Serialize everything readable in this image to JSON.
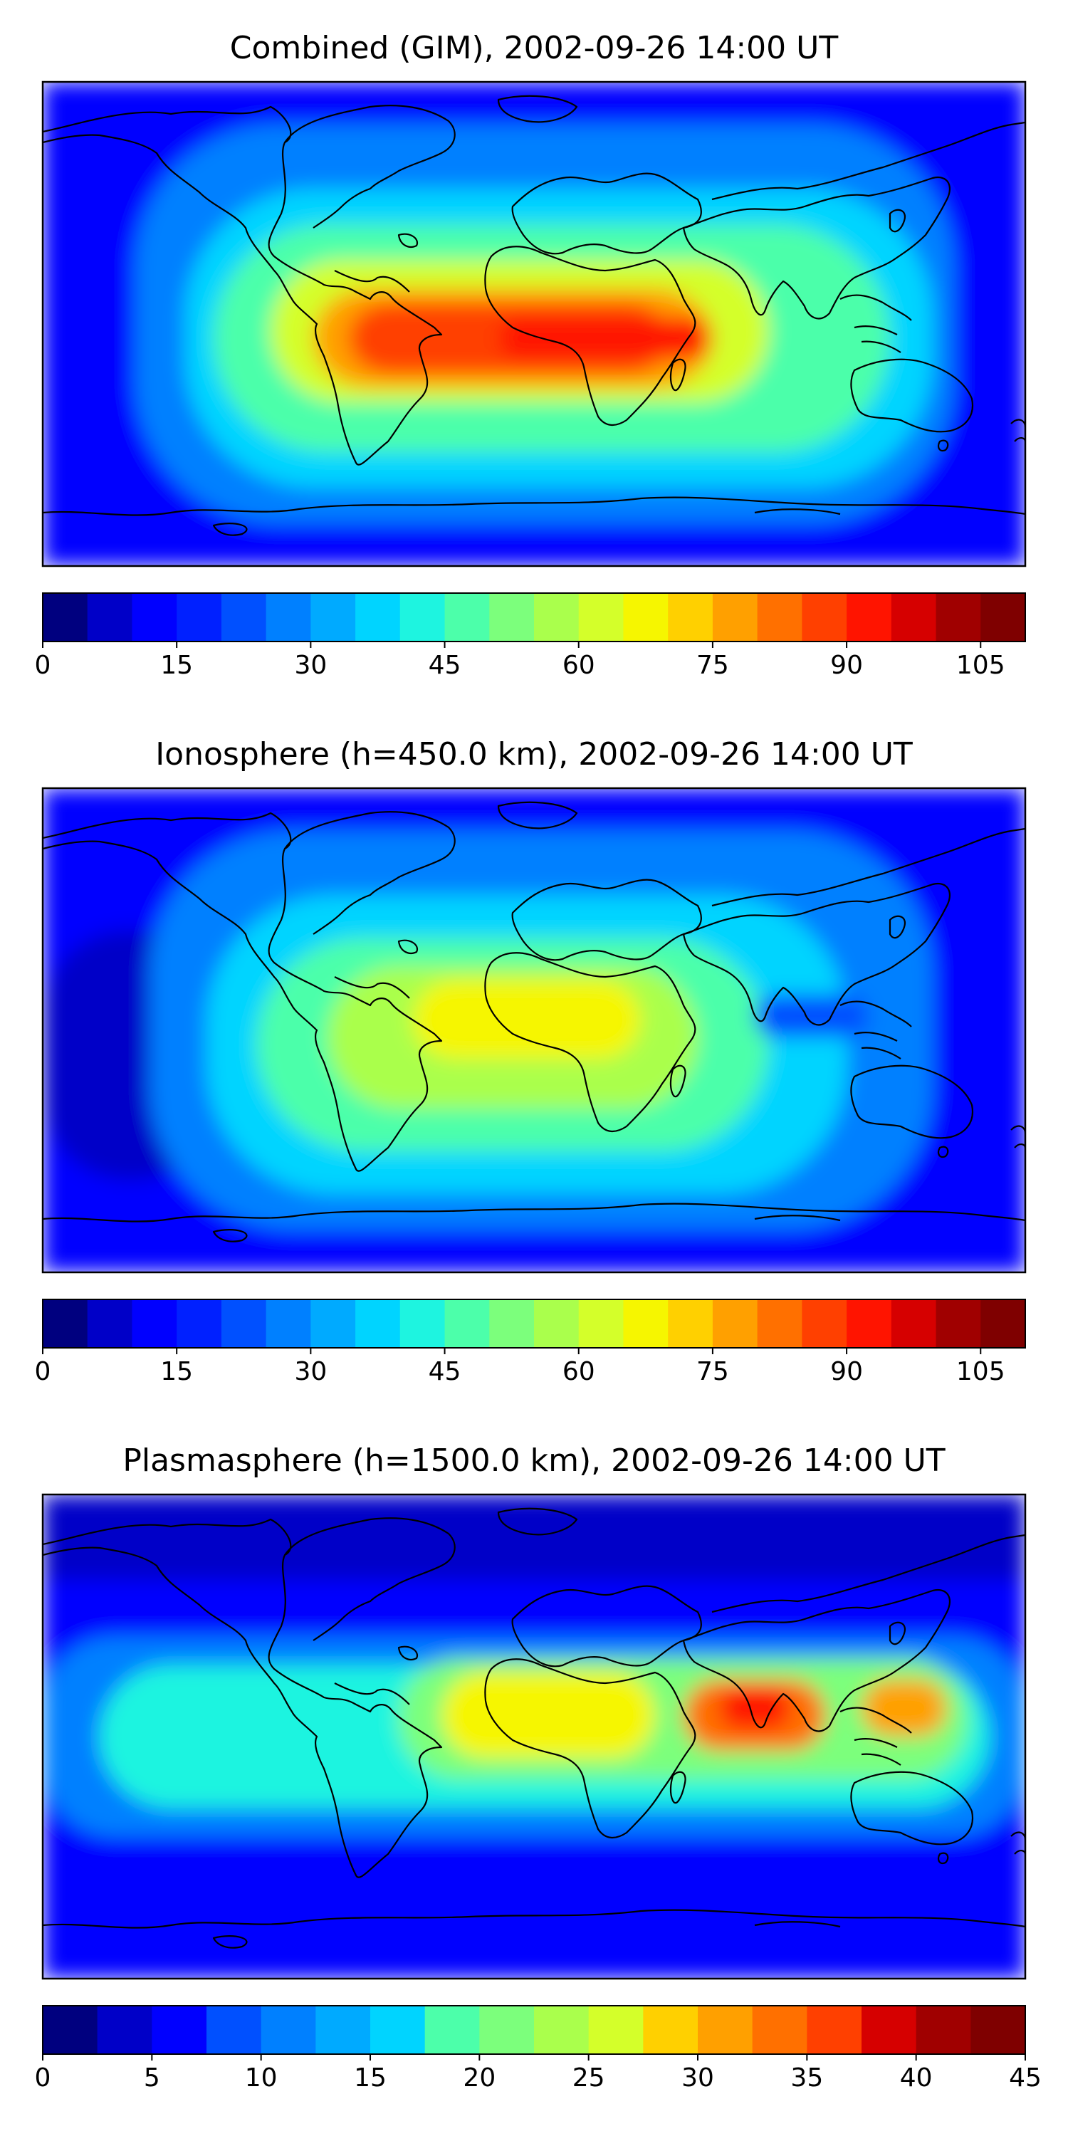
{
  "panels": [
    {
      "title": "Combined (GIM), 2002-09-26 14:00 UT",
      "colorbar": {
        "min": 0,
        "max": 110,
        "step": 5,
        "ticks": [
          "0",
          "15",
          "30",
          "45",
          "60",
          "75",
          "90",
          "105"
        ],
        "tick_values": [
          0,
          15,
          30,
          45,
          60,
          75,
          90,
          105
        ]
      }
    },
    {
      "title": "Ionosphere  (h=450.0 km), 2002-09-26 14:00 UT",
      "colorbar": {
        "min": 0,
        "max": 110,
        "step": 5,
        "ticks": [
          "0",
          "15",
          "30",
          "45",
          "60",
          "75",
          "90",
          "105"
        ],
        "tick_values": [
          0,
          15,
          30,
          45,
          60,
          75,
          90,
          105
        ]
      }
    },
    {
      "title": "Plasmasphere (h=1500.0 km), 2002-09-26 14:00 UT",
      "colorbar": {
        "min": 0,
        "max": 45,
        "step": 2.5,
        "ticks": [
          "0",
          "5",
          "10",
          "15",
          "20",
          "25",
          "30",
          "35",
          "40",
          "45"
        ],
        "tick_values": [
          0,
          5,
          10,
          15,
          20,
          25,
          30,
          35,
          40,
          45
        ]
      }
    }
  ],
  "colormap": [
    "#00007f",
    "#0000c8",
    "#0000ff",
    "#0020ff",
    "#0050ff",
    "#0080ff",
    "#00aaff",
    "#00d4ff",
    "#1ef4e0",
    "#4cffaa",
    "#7cff7c",
    "#aaff4c",
    "#d4ff2a",
    "#f6f600",
    "#ffd000",
    "#ffa000",
    "#ff7000",
    "#ff4000",
    "#ff1400",
    "#d60000",
    "#a00000",
    "#7f0000"
  ],
  "colors": {
    "ocean_bg": "#0032ff",
    "coast": "#000000"
  }
}
